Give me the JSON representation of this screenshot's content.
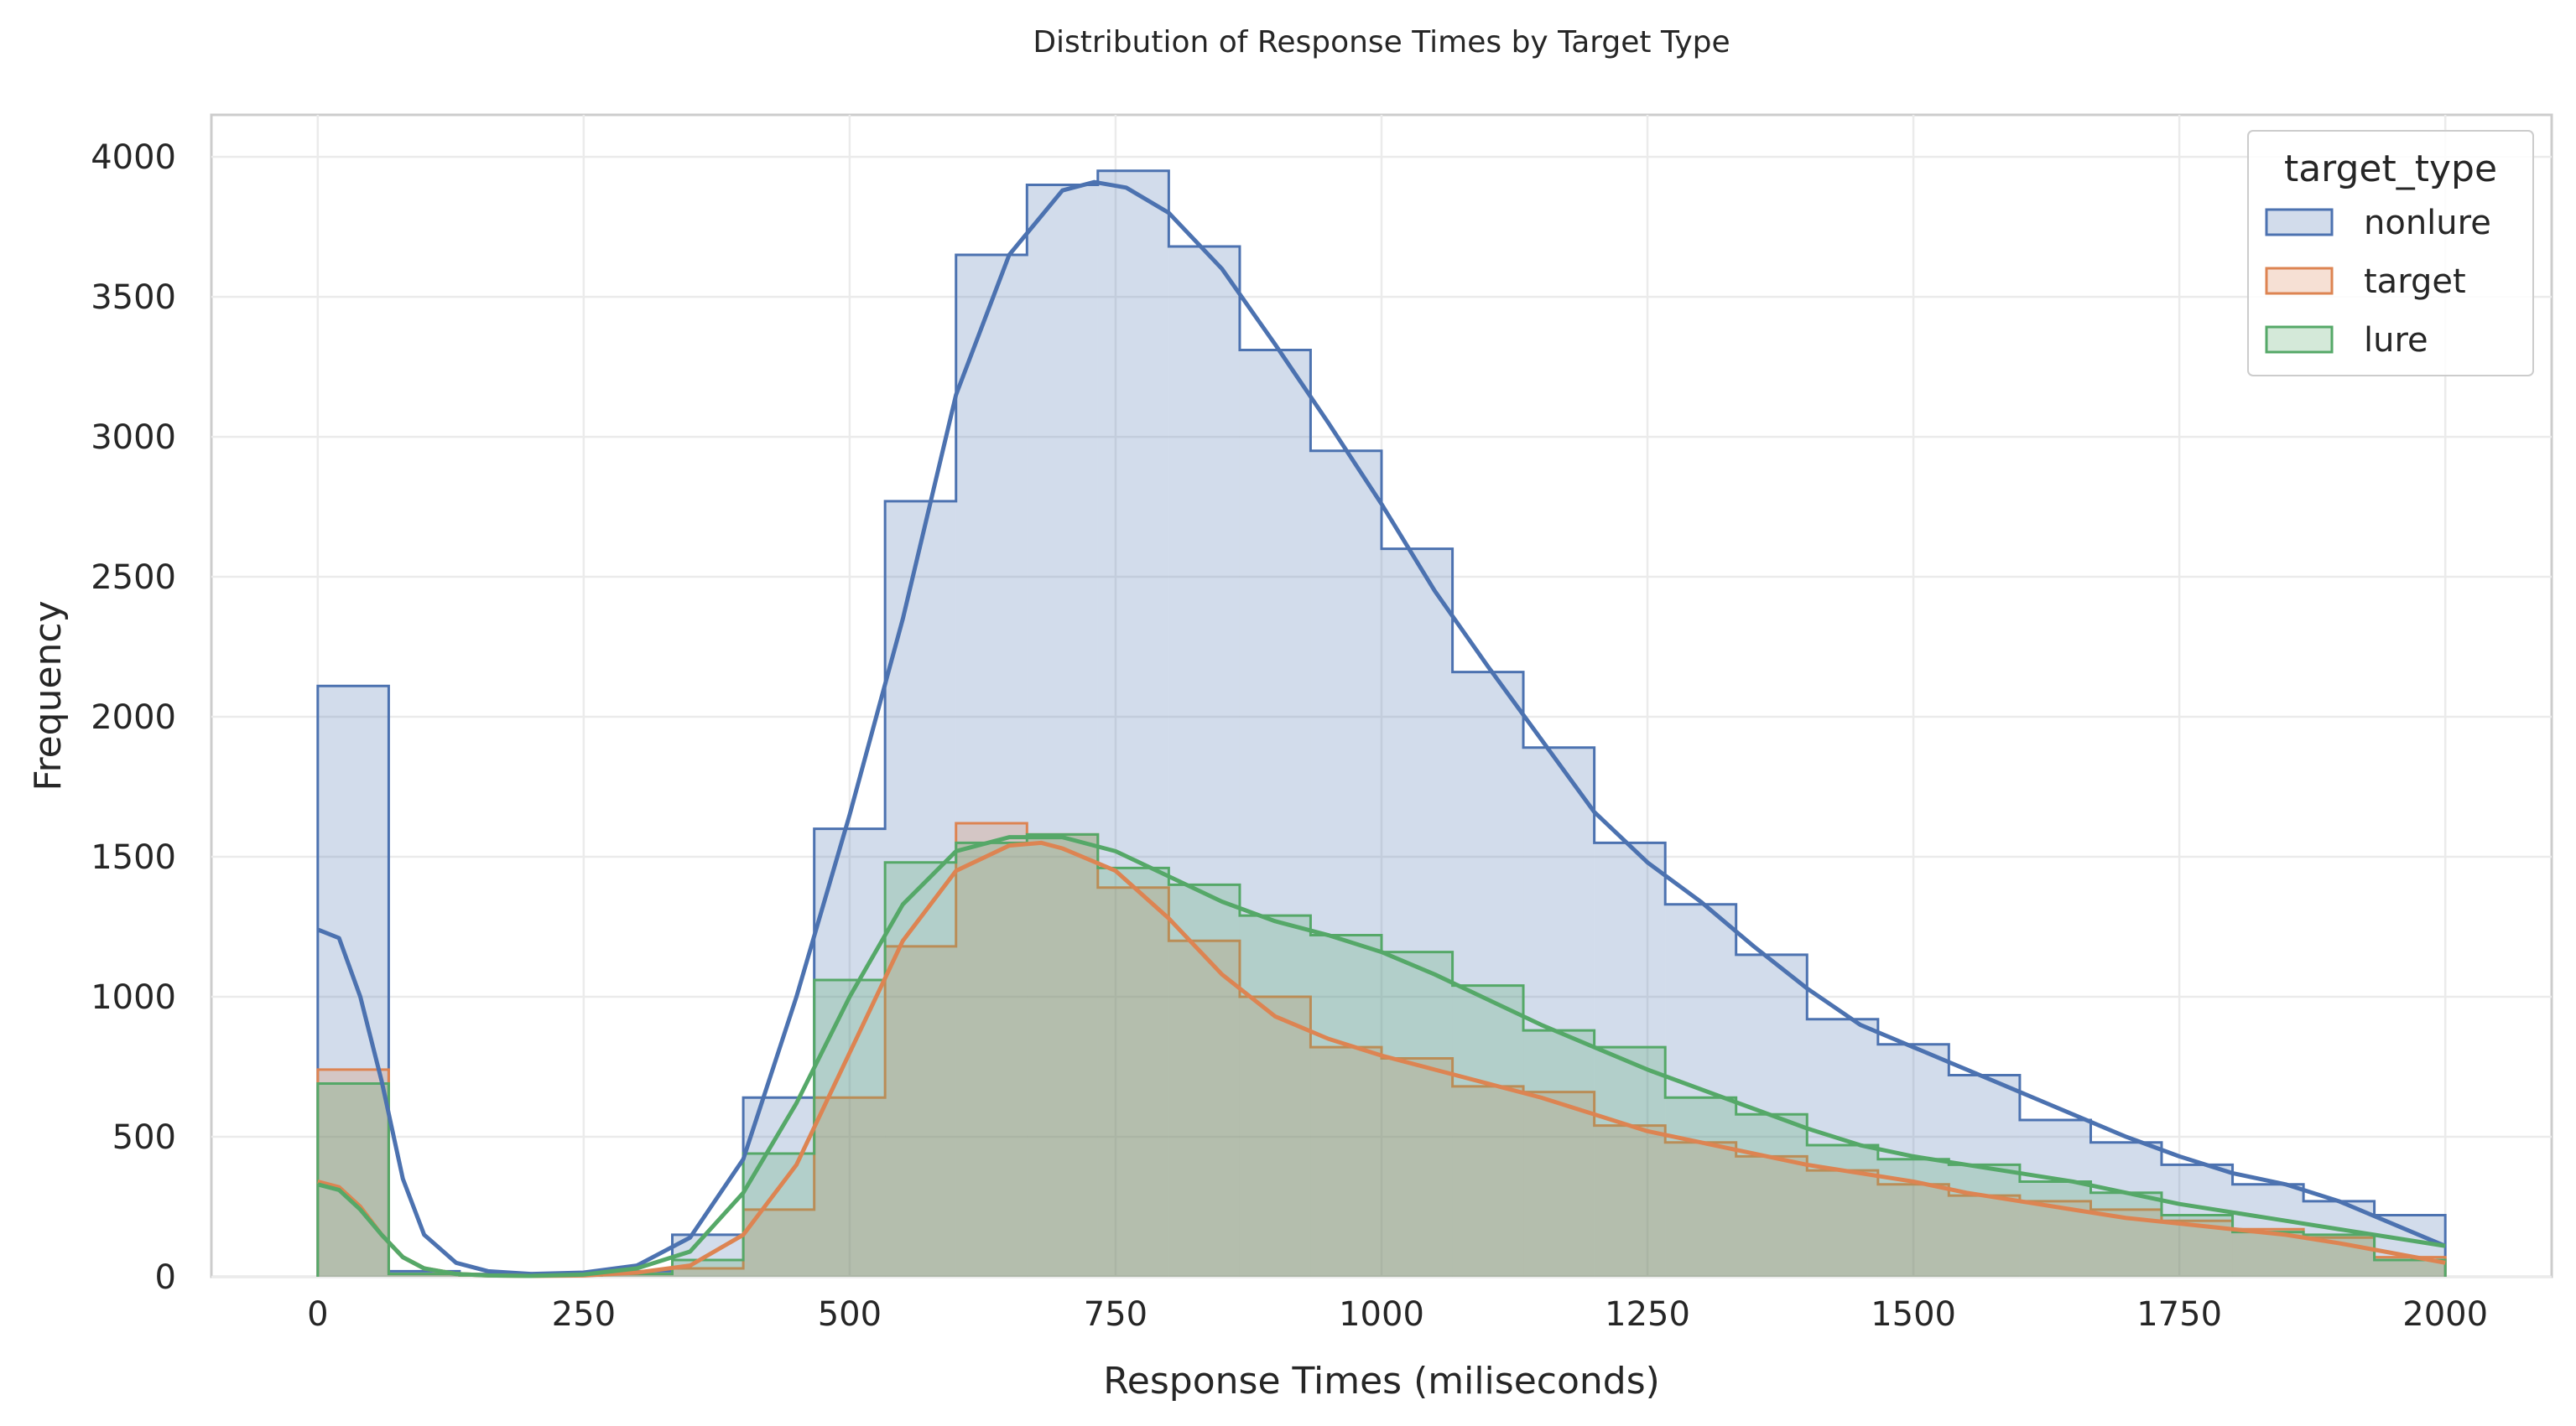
{
  "chart_data": {
    "type": "histogram",
    "title": "Distribution of Response Times by Target Type",
    "xlabel": "Response Times (miliseconds)",
    "ylabel": "Frequency",
    "xlim": [
      -100,
      2100
    ],
    "ylim": [
      0,
      4150
    ],
    "xticks": [
      0,
      250,
      500,
      750,
      1000,
      1250,
      1500,
      1750,
      2000
    ],
    "yticks": [
      0,
      500,
      1000,
      1500,
      2000,
      2500,
      3000,
      3500,
      4000
    ],
    "grid": true,
    "legend": {
      "title": "target_type",
      "placement": "top-right"
    },
    "bin_edges": [
      0,
      66.7,
      133.3,
      200,
      266.7,
      333.3,
      400,
      466.7,
      533.3,
      600,
      666.7,
      733.3,
      800,
      866.7,
      933.3,
      1000,
      1066.7,
      1133.3,
      1200,
      1266.7,
      1333.3,
      1400,
      1466.7,
      1533.3,
      1600,
      1666.7,
      1733.3,
      1800,
      1866.7,
      1933.3,
      2000
    ],
    "series": [
      {
        "name": "nonlure",
        "color": "#4c72b0",
        "values": [
          2110,
          20,
          10,
          5,
          20,
          150,
          640,
          1600,
          2770,
          3650,
          3900,
          3950,
          3680,
          3310,
          2950,
          2600,
          2160,
          1890,
          1550,
          1330,
          1150,
          920,
          830,
          720,
          560,
          480,
          400,
          330,
          270,
          220
        ],
        "kde_x": [
          0,
          20,
          40,
          60,
          80,
          100,
          130,
          160,
          200,
          250,
          300,
          350,
          400,
          450,
          500,
          550,
          600,
          650,
          700,
          730,
          760,
          800,
          850,
          900,
          950,
          1000,
          1050,
          1100,
          1150,
          1200,
          1250,
          1300,
          1350,
          1400,
          1450,
          1500,
          1550,
          1600,
          1650,
          1700,
          1750,
          1800,
          1850,
          1900,
          1950,
          2000
        ],
        "kde_y": [
          1240,
          1210,
          1000,
          700,
          350,
          150,
          50,
          20,
          10,
          15,
          40,
          140,
          420,
          1000,
          1650,
          2350,
          3150,
          3650,
          3880,
          3910,
          3890,
          3800,
          3600,
          3330,
          3050,
          2760,
          2450,
          2180,
          1920,
          1660,
          1480,
          1340,
          1180,
          1030,
          900,
          820,
          740,
          660,
          580,
          500,
          430,
          370,
          330,
          270,
          190,
          110
        ]
      },
      {
        "name": "target",
        "color": "#dd8452",
        "values": [
          740,
          10,
          5,
          5,
          10,
          30,
          240,
          640,
          1180,
          1620,
          1580,
          1390,
          1200,
          1000,
          820,
          780,
          680,
          660,
          540,
          480,
          430,
          380,
          330,
          290,
          270,
          240,
          200,
          170,
          140,
          70
        ],
        "kde_x": [
          0,
          20,
          40,
          60,
          80,
          100,
          130,
          160,
          200,
          250,
          300,
          350,
          400,
          450,
          500,
          550,
          600,
          650,
          680,
          700,
          750,
          800,
          850,
          900,
          950,
          1000,
          1050,
          1100,
          1150,
          1200,
          1250,
          1300,
          1350,
          1400,
          1450,
          1500,
          1550,
          1600,
          1650,
          1700,
          1750,
          1800,
          1850,
          1900,
          1950,
          2000
        ],
        "kde_y": [
          340,
          320,
          250,
          150,
          70,
          30,
          10,
          5,
          3,
          5,
          15,
          40,
          150,
          400,
          800,
          1200,
          1450,
          1540,
          1550,
          1530,
          1450,
          1280,
          1080,
          930,
          850,
          790,
          740,
          690,
          640,
          580,
          520,
          480,
          440,
          400,
          370,
          340,
          300,
          270,
          240,
          210,
          190,
          170,
          150,
          120,
          85,
          50
        ]
      },
      {
        "name": "lure",
        "color": "#55a868",
        "values": [
          690,
          10,
          5,
          5,
          10,
          60,
          440,
          1060,
          1480,
          1550,
          1580,
          1460,
          1400,
          1290,
          1220,
          1160,
          1040,
          880,
          820,
          640,
          580,
          470,
          420,
          400,
          340,
          300,
          220,
          160,
          150,
          60
        ],
        "kde_x": [
          0,
          20,
          40,
          60,
          80,
          100,
          130,
          160,
          200,
          250,
          300,
          350,
          400,
          450,
          500,
          550,
          600,
          650,
          700,
          750,
          800,
          850,
          900,
          950,
          1000,
          1050,
          1100,
          1150,
          1200,
          1250,
          1300,
          1350,
          1400,
          1450,
          1500,
          1550,
          1600,
          1650,
          1700,
          1750,
          1800,
          1850,
          1900,
          1950,
          2000
        ],
        "kde_y": [
          330,
          310,
          240,
          150,
          70,
          30,
          10,
          5,
          3,
          8,
          30,
          90,
          300,
          620,
          1000,
          1330,
          1520,
          1570,
          1570,
          1520,
          1430,
          1340,
          1270,
          1220,
          1160,
          1080,
          990,
          900,
          820,
          740,
          670,
          600,
          530,
          470,
          430,
          400,
          370,
          340,
          300,
          260,
          230,
          200,
          170,
          140,
          110,
          80
        ]
      }
    ]
  }
}
